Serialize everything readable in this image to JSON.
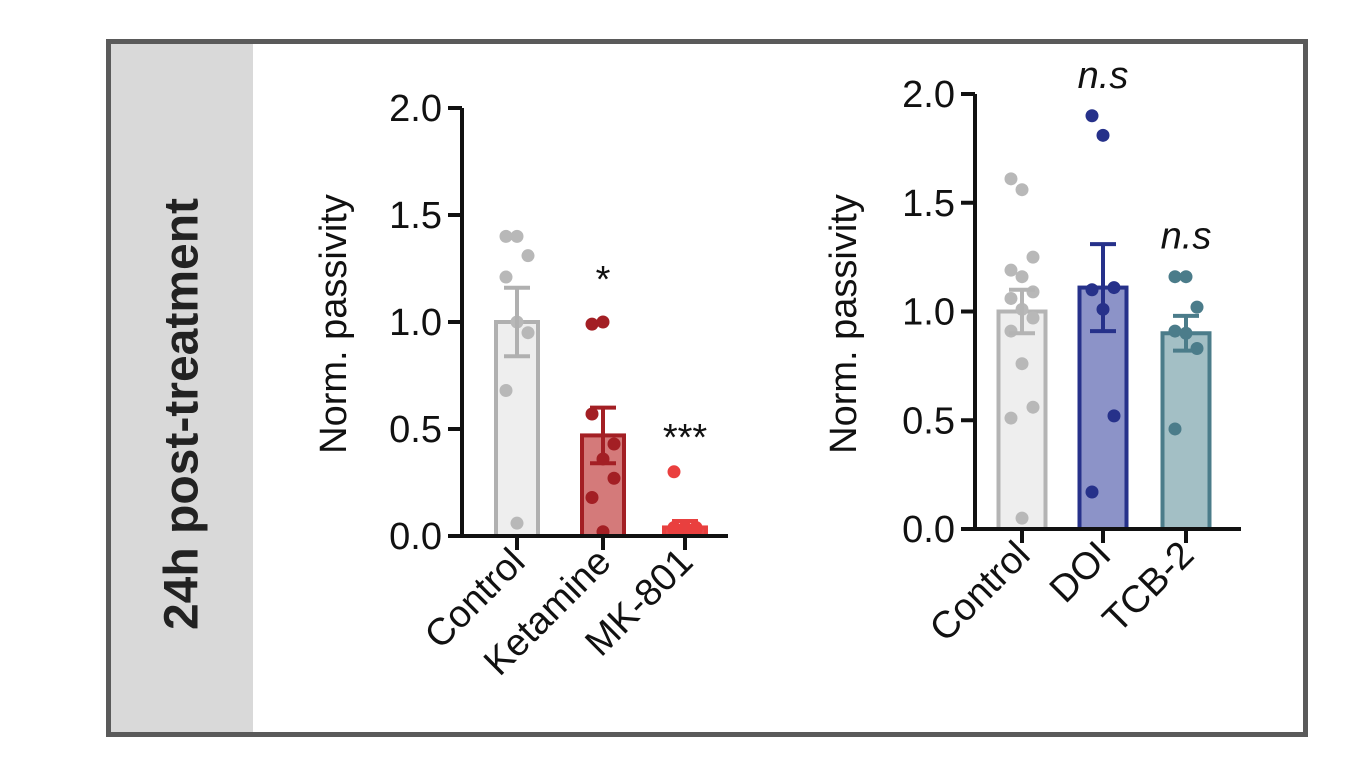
{
  "panel": {
    "side_label": "24h post-treatment",
    "colors": {
      "frame": "#5a5a5a",
      "sidebar": "#d9d9d9"
    }
  },
  "chart_data": [
    {
      "type": "bar",
      "ylabel": "Norm. passivity",
      "ylim": [
        0,
        2.0
      ],
      "yticks": [
        "0.0",
        "0.5",
        "1.0",
        "1.5",
        "2.0"
      ],
      "categories": [
        "Control",
        "Ketamine",
        "MK-801"
      ],
      "values": [
        1.0,
        0.47,
        0.04
      ],
      "sem": [
        0.16,
        0.13,
        0.03
      ],
      "points": [
        [
          1.4,
          1.4,
          1.31,
          1.21,
          1.0,
          0.95,
          0.68,
          0.06
        ],
        [
          0.99,
          1.0,
          0.43,
          0.57,
          0.36,
          0.27,
          0.18,
          0.02
        ],
        [
          0.3,
          0.04,
          0.03,
          0.04,
          0.03,
          0.04,
          0.03,
          0.04
        ]
      ],
      "significance": [
        "",
        "*",
        "***"
      ],
      "colors": {
        "fill": [
          "#eeeeee",
          "#d47a7a",
          "#e8494a"
        ],
        "edge": [
          "#b0b0b0",
          "#a31f24",
          "#e8403f"
        ],
        "dot": [
          "#b8b8b8",
          "#a31f24",
          "#ea3f3e"
        ]
      }
    },
    {
      "type": "bar",
      "ylabel": "Norm. passivity",
      "ylim": [
        0,
        2.0
      ],
      "yticks": [
        "0.0",
        "0.5",
        "1.0",
        "1.5",
        "2.0"
      ],
      "categories": [
        "Control",
        "DOI",
        "TCB-2"
      ],
      "values": [
        1.0,
        1.11,
        0.9
      ],
      "sem": [
        0.1,
        0.2,
        0.08
      ],
      "points": [
        [
          1.61,
          1.56,
          1.25,
          1.19,
          1.16,
          1.09,
          1.06,
          1.01,
          0.97,
          0.91,
          0.76,
          0.56,
          0.51,
          0.05
        ],
        [
          1.9,
          1.81,
          1.11,
          1.1,
          1.01,
          0.52,
          0.17
        ],
        [
          1.16,
          1.16,
          1.02,
          0.91,
          0.9,
          0.83,
          0.46
        ]
      ],
      "significance": [
        "",
        "n.s",
        "n.s"
      ],
      "colors": {
        "fill": [
          "#eeeeee",
          "#8c93c8",
          "#a3bfc5"
        ],
        "edge": [
          "#b4b4b4",
          "#26318a",
          "#4b7c8a"
        ],
        "dot": [
          "#b8b8b8",
          "#26318a",
          "#4b7c8a"
        ]
      }
    }
  ]
}
